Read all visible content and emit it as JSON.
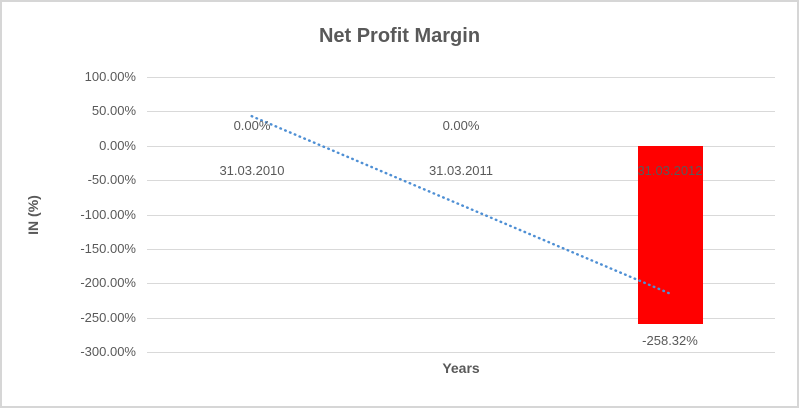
{
  "chart_data": {
    "type": "bar",
    "title": "Net Profit Margin",
    "xlabel": "Years",
    "ylabel": "IN (%)",
    "categories": [
      "31.03.2010",
      "31.03.2011",
      "31.03.2012"
    ],
    "values": [
      0.0,
      0.0,
      -258.32
    ],
    "data_labels": [
      "0.00%",
      "0.00%",
      "-258.32%"
    ],
    "ylim": [
      -300,
      100
    ],
    "ytick_step": 50,
    "ytick_labels": [
      "100.00%",
      "50.00%",
      "0.00%",
      "-50.00%",
      "-100.00%",
      "-150.00%",
      "-200.00%",
      "-250.00%",
      "-300.00%"
    ],
    "grid": true,
    "legend": "none",
    "bar_color": "#FF0000",
    "trendline": {
      "type": "linear",
      "style": "dotted",
      "color": "#4E8FD4",
      "start_value": 43.05,
      "end_value": -215.27
    },
    "text_color": "#595959",
    "gridline_color": "#D9D9D9",
    "border_color": "#D6D6D6",
    "background_color": "#FFFFFF"
  }
}
